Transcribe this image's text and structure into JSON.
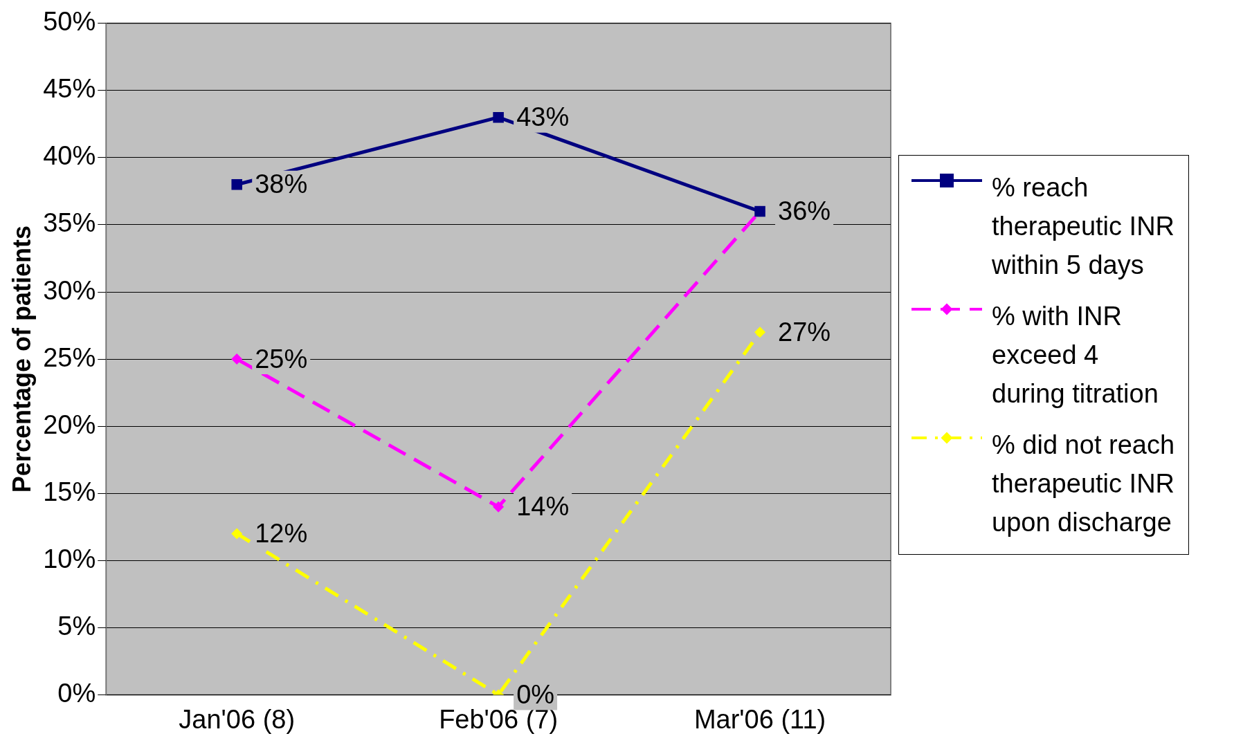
{
  "chart_data": {
    "type": "line",
    "ylabel": "Percentage of patients",
    "categories": [
      "Jan'06 (8)",
      "Feb'06 (7)",
      "Mar'06 (11)"
    ],
    "series": [
      {
        "name": "% reach therapeutic INR within 5 days",
        "color": "#000080",
        "values": [
          38,
          43,
          36
        ],
        "value_labels": [
          "38%",
          "43%",
          "36%"
        ],
        "marker": "square",
        "line_style": "solid"
      },
      {
        "name": "% with INR exceed 4 during titration",
        "color": "#ff00ff",
        "values": [
          25,
          14,
          36
        ],
        "value_labels": [
          "25%",
          "14%",
          null
        ],
        "marker": "diamond",
        "line_style": "dashed"
      },
      {
        "name": "% did not reach therapeutic INR upon discharge",
        "color": "#ffff00",
        "values": [
          12,
          0,
          27
        ],
        "value_labels": [
          "12%",
          "0%",
          "27%"
        ],
        "marker": "diamond",
        "line_style": "dashed"
      }
    ],
    "ylim": [
      0,
      50
    ],
    "yticks": [
      {
        "value": 0,
        "label": "0%"
      },
      {
        "value": 5,
        "label": "5%"
      },
      {
        "value": 10,
        "label": "10%"
      },
      {
        "value": 15,
        "label": "15%"
      },
      {
        "value": 20,
        "label": "20%"
      },
      {
        "value": 25,
        "label": "25%"
      },
      {
        "value": 30,
        "label": "30%"
      },
      {
        "value": 35,
        "label": "35%"
      },
      {
        "value": 40,
        "label": "40%"
      },
      {
        "value": 45,
        "label": "45%"
      },
      {
        "value": 50,
        "label": "50%"
      }
    ],
    "grid": "y",
    "legend": "right"
  }
}
